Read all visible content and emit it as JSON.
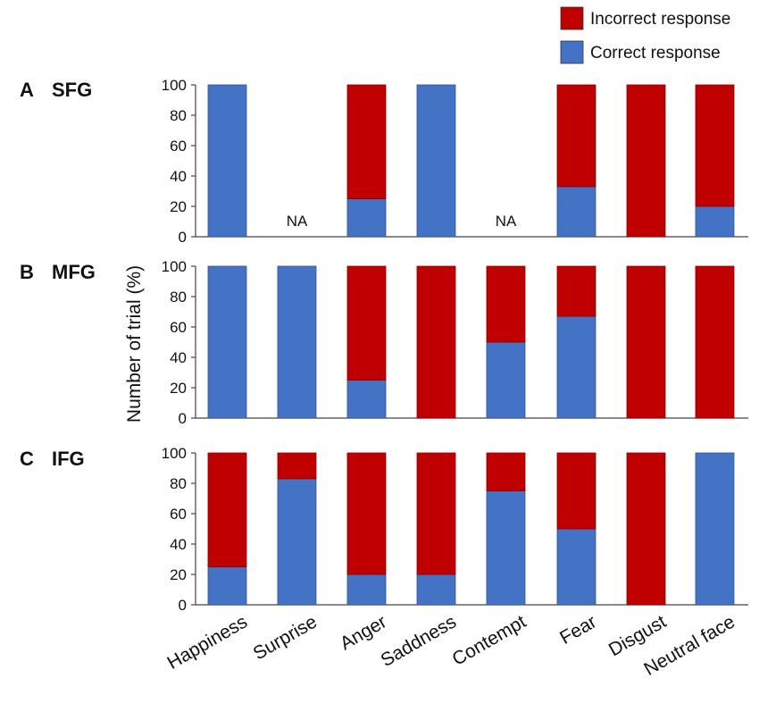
{
  "chart_data": {
    "type": "bar",
    "stacked": true,
    "categories": [
      "Happiness",
      "Surprise",
      "Anger",
      "Saddness",
      "Contempt",
      "Fear",
      "Disgust",
      "Neutral face"
    ],
    "ylabel": "Number of trial (%)",
    "ylim": [
      0,
      100
    ],
    "yticks": [
      0,
      20,
      40,
      60,
      80,
      100
    ],
    "legend": [
      {
        "label": "Incorrect response",
        "color": "#c00000"
      },
      {
        "label": "Correct response",
        "color": "#4472c4"
      }
    ],
    "na_label": "NA",
    "panels": [
      {
        "letter": "A",
        "title": "SFG",
        "series": [
          {
            "name": "Correct response",
            "values": [
              100,
              null,
              25,
              100,
              null,
              33,
              0,
              20
            ]
          },
          {
            "name": "Incorrect response",
            "values": [
              0,
              null,
              75,
              0,
              null,
              67,
              100,
              80
            ]
          }
        ]
      },
      {
        "letter": "B",
        "title": "MFG",
        "series": [
          {
            "name": "Correct response",
            "values": [
              100,
              100,
              25,
              0,
              50,
              67,
              0,
              0
            ]
          },
          {
            "name": "Incorrect response",
            "values": [
              0,
              0,
              75,
              100,
              50,
              33,
              100,
              100
            ]
          }
        ]
      },
      {
        "letter": "C",
        "title": "IFG",
        "series": [
          {
            "name": "Correct response",
            "values": [
              25,
              83,
              20,
              20,
              75,
              50,
              0,
              100
            ]
          },
          {
            "name": "Incorrect response",
            "values": [
              75,
              17,
              80,
              80,
              25,
              50,
              100,
              0
            ]
          }
        ]
      }
    ]
  }
}
